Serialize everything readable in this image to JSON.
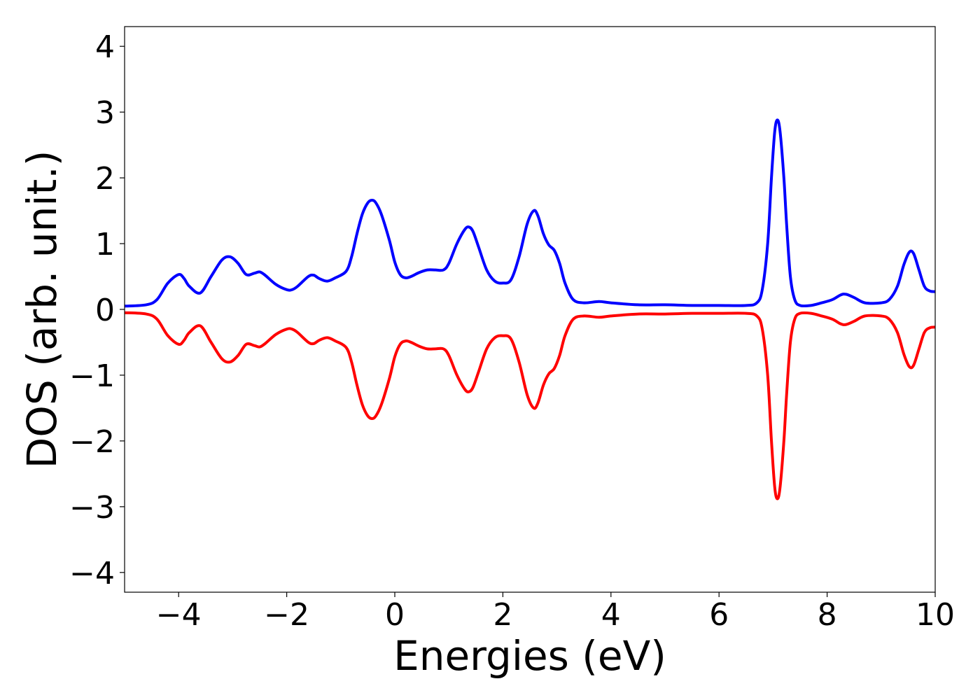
{
  "chart_data": {
    "type": "line",
    "title": "",
    "xlabel": "Energies (eV)",
    "ylabel": "DOS (arb. unit.)",
    "xlim": [
      -5,
      10
    ],
    "ylim": [
      -4.3,
      4.3
    ],
    "xticks": [
      -4,
      -2,
      0,
      2,
      4,
      6,
      8,
      10
    ],
    "xtick_labels": [
      "−4",
      "−2",
      "0",
      "2",
      "4",
      "6",
      "8",
      "10"
    ],
    "yticks": [
      -4,
      -3,
      -2,
      -1,
      0,
      1,
      2,
      3,
      4
    ],
    "ytick_labels": [
      "−4",
      "−3",
      "−2",
      "−1",
      "0",
      "1",
      "2",
      "3",
      "4"
    ],
    "grid": false,
    "legend": "none",
    "series": [
      {
        "color": "#0000ff",
        "x": [
          -5.0,
          -4.6,
          -4.4,
          -4.2,
          -4.0,
          -3.9,
          -3.8,
          -3.6,
          -3.4,
          -3.2,
          -3.05,
          -2.9,
          -2.75,
          -2.6,
          -2.5,
          -2.4,
          -2.2,
          -2.0,
          -1.9,
          -1.8,
          -1.6,
          -1.5,
          -1.4,
          -1.25,
          -1.1,
          -0.9,
          -0.8,
          -0.7,
          -0.6,
          -0.5,
          -0.42,
          -0.35,
          -0.25,
          -0.1,
          0.0,
          0.1,
          0.2,
          0.3,
          0.45,
          0.6,
          0.75,
          0.9,
          1.0,
          1.15,
          1.3,
          1.38,
          1.45,
          1.55,
          1.7,
          1.85,
          2.0,
          2.15,
          2.3,
          2.45,
          2.57,
          2.65,
          2.75,
          2.85,
          2.95,
          3.05,
          3.15,
          3.3,
          3.5,
          3.78,
          4.0,
          4.5,
          5.0,
          5.5,
          6.0,
          6.5,
          6.7,
          6.8,
          6.9,
          6.97,
          7.03,
          7.08,
          7.13,
          7.2,
          7.25,
          7.32,
          7.4,
          7.5,
          7.7,
          7.9,
          8.1,
          8.25,
          8.35,
          8.5,
          8.7,
          9.0,
          9.15,
          9.3,
          9.42,
          9.52,
          9.6,
          9.7,
          9.8,
          9.9,
          10.0
        ],
        "values": [
          0.05,
          0.07,
          0.15,
          0.4,
          0.53,
          0.47,
          0.35,
          0.25,
          0.5,
          0.75,
          0.8,
          0.7,
          0.53,
          0.55,
          0.57,
          0.52,
          0.38,
          0.3,
          0.3,
          0.35,
          0.5,
          0.52,
          0.47,
          0.43,
          0.48,
          0.58,
          0.8,
          1.15,
          1.45,
          1.62,
          1.66,
          1.62,
          1.45,
          1.05,
          0.72,
          0.53,
          0.48,
          0.5,
          0.56,
          0.6,
          0.6,
          0.6,
          0.7,
          1.0,
          1.22,
          1.25,
          1.18,
          0.95,
          0.6,
          0.43,
          0.4,
          0.45,
          0.8,
          1.3,
          1.5,
          1.42,
          1.15,
          0.98,
          0.9,
          0.7,
          0.4,
          0.15,
          0.1,
          0.12,
          0.1,
          0.07,
          0.07,
          0.06,
          0.06,
          0.06,
          0.1,
          0.3,
          1.0,
          2.0,
          2.7,
          2.88,
          2.7,
          2.0,
          1.3,
          0.5,
          0.15,
          0.06,
          0.06,
          0.1,
          0.15,
          0.22,
          0.23,
          0.18,
          0.1,
          0.1,
          0.15,
          0.35,
          0.68,
          0.87,
          0.85,
          0.6,
          0.35,
          0.28,
          0.27
        ]
      },
      {
        "color": "#ff0000",
        "x": [
          -5.0,
          -4.6,
          -4.4,
          -4.2,
          -4.0,
          -3.9,
          -3.8,
          -3.6,
          -3.4,
          -3.2,
          -3.05,
          -2.9,
          -2.75,
          -2.6,
          -2.5,
          -2.4,
          -2.2,
          -2.0,
          -1.9,
          -1.8,
          -1.6,
          -1.5,
          -1.4,
          -1.25,
          -1.1,
          -0.9,
          -0.8,
          -0.7,
          -0.6,
          -0.5,
          -0.42,
          -0.35,
          -0.25,
          -0.1,
          0.0,
          0.1,
          0.2,
          0.3,
          0.45,
          0.6,
          0.75,
          0.9,
          1.0,
          1.15,
          1.3,
          1.38,
          1.45,
          1.55,
          1.7,
          1.85,
          2.0,
          2.15,
          2.3,
          2.45,
          2.57,
          2.65,
          2.75,
          2.85,
          2.95,
          3.05,
          3.15,
          3.3,
          3.5,
          3.78,
          4.0,
          4.5,
          5.0,
          5.5,
          6.0,
          6.5,
          6.7,
          6.8,
          6.9,
          6.97,
          7.03,
          7.08,
          7.13,
          7.2,
          7.25,
          7.32,
          7.4,
          7.5,
          7.7,
          7.9,
          8.1,
          8.25,
          8.35,
          8.5,
          8.7,
          9.0,
          9.15,
          9.3,
          9.42,
          9.52,
          9.6,
          9.7,
          9.8,
          9.9,
          10.0
        ],
        "values": [
          -0.05,
          -0.07,
          -0.15,
          -0.4,
          -0.53,
          -0.47,
          -0.35,
          -0.25,
          -0.5,
          -0.75,
          -0.8,
          -0.7,
          -0.53,
          -0.55,
          -0.57,
          -0.52,
          -0.38,
          -0.3,
          -0.3,
          -0.35,
          -0.5,
          -0.52,
          -0.47,
          -0.43,
          -0.48,
          -0.58,
          -0.8,
          -1.15,
          -1.45,
          -1.62,
          -1.66,
          -1.62,
          -1.45,
          -1.05,
          -0.72,
          -0.53,
          -0.48,
          -0.5,
          -0.56,
          -0.6,
          -0.6,
          -0.6,
          -0.7,
          -1.0,
          -1.22,
          -1.25,
          -1.18,
          -0.95,
          -0.6,
          -0.43,
          -0.4,
          -0.45,
          -0.8,
          -1.3,
          -1.5,
          -1.42,
          -1.15,
          -0.98,
          -0.9,
          -0.7,
          -0.4,
          -0.15,
          -0.1,
          -0.12,
          -0.1,
          -0.07,
          -0.07,
          -0.06,
          -0.06,
          -0.06,
          -0.1,
          -0.3,
          -1.0,
          -2.0,
          -2.7,
          -2.88,
          -2.7,
          -2.0,
          -1.3,
          -0.5,
          -0.15,
          -0.06,
          -0.06,
          -0.1,
          -0.15,
          -0.22,
          -0.23,
          -0.18,
          -0.1,
          -0.1,
          -0.15,
          -0.35,
          -0.68,
          -0.87,
          -0.85,
          -0.6,
          -0.35,
          -0.28,
          -0.27
        ]
      }
    ]
  }
}
